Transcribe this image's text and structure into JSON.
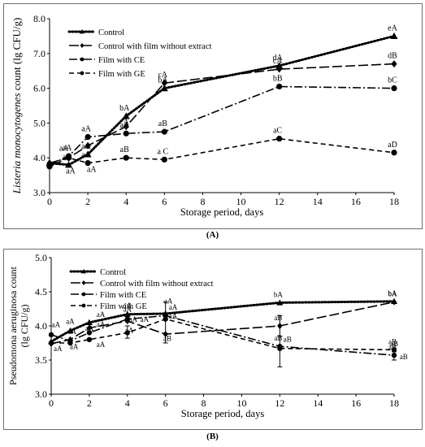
{
  "chart_data": [
    {
      "type": "line",
      "panel_label": "(A)",
      "title": "",
      "xlabel": "Storage period, days",
      "ylabel_italic": "Listeria monocytogenes",
      "ylabel_rest": " count (lg CFU/g)",
      "xlim": [
        0,
        18
      ],
      "ylim": [
        3.0,
        8.0
      ],
      "xticks": [
        "0",
        "2",
        "4",
        "6",
        "8",
        "10",
        "12",
        "14",
        "16",
        "18"
      ],
      "yticks": [
        "3.0",
        "4.0",
        "5.0",
        "6.0",
        "7.0",
        "8.0"
      ],
      "grid": false,
      "legend_position": "top-left",
      "series": [
        {
          "name": "Control",
          "style": "dotted",
          "marker": "triangle",
          "x": [
            0,
            1,
            2,
            4,
            6,
            12,
            18
          ],
          "y": [
            3.85,
            3.8,
            4.1,
            5.2,
            6.0,
            6.65,
            7.5
          ],
          "labels": [
            "",
            "aA",
            "aA",
            "bA",
            "bA",
            "dA",
            "eA"
          ]
        },
        {
          "name": "Control with film without extract",
          "style": "longdash",
          "marker": "diamond",
          "x": [
            0,
            1,
            2,
            4,
            6,
            12,
            18
          ],
          "y": [
            3.85,
            4.0,
            4.35,
            4.9,
            6.15,
            6.55,
            6.7
          ],
          "labels": [
            "",
            "",
            "",
            "",
            "cA",
            "cA",
            "dB"
          ]
        },
        {
          "name": "Film with CE",
          "style": "dashdot",
          "marker": "circle",
          "x": [
            0,
            1,
            2,
            4,
            6,
            12,
            18
          ],
          "y": [
            3.8,
            4.05,
            4.6,
            4.7,
            4.75,
            6.05,
            6.0
          ],
          "labels": [
            "",
            "aA",
            "aA",
            "aA",
            "aB",
            "bB",
            "bC"
          ]
        },
        {
          "name": "Film with GE",
          "style": "dashed",
          "marker": "circle",
          "x": [
            0,
            1,
            2,
            4,
            6,
            12,
            18
          ],
          "y": [
            3.75,
            4.0,
            3.85,
            4.0,
            3.95,
            4.55,
            4.15
          ],
          "labels": [
            "",
            "",
            "aA",
            "aB",
            "a C",
            "aC",
            "aD"
          ]
        }
      ],
      "extra_labels": [
        {
          "text": "aA",
          "x": 0.75,
          "y": 4.2
        },
        {
          "text": "aA",
          "x": 1.1,
          "y": 3.55
        },
        {
          "text": "aA",
          "x": 2.2,
          "y": 3.6
        },
        {
          "text": "A",
          "x": 4.0,
          "y": 4.95
        }
      ]
    },
    {
      "type": "line",
      "panel_label": "(B)",
      "title": "",
      "xlabel": "Storage period, days",
      "ylabel_line1": "Pseudomona aeruginosa count",
      "ylabel_line2": "(lg CFU/g)",
      "xlim": [
        0,
        18
      ],
      "ylim": [
        3.0,
        5.0
      ],
      "xticks": [
        "0",
        "2",
        "4",
        "6",
        "8",
        "10",
        "12",
        "14",
        "16",
        "18"
      ],
      "yticks": [
        "3.0",
        "3.5",
        "4.0",
        "4.5",
        "5.0"
      ],
      "grid": false,
      "legend_position": "top-left",
      "series": [
        {
          "name": "Control",
          "style": "dotted",
          "marker": "triangle",
          "x": [
            0,
            1,
            2,
            4,
            6,
            12,
            18
          ],
          "y": [
            3.77,
            3.93,
            4.05,
            4.17,
            4.18,
            4.34,
            4.36
          ],
          "labels": [
            "",
            "",
            "",
            "",
            "",
            "bA",
            "bA"
          ]
        },
        {
          "name": "Control with film without extract",
          "style": "longdash",
          "marker": "diamond",
          "x": [
            0,
            1,
            2,
            4,
            6,
            12,
            18
          ],
          "y": [
            3.74,
            3.8,
            3.97,
            4.07,
            3.88,
            4.0,
            4.35
          ],
          "labels": [
            "",
            "",
            "",
            "",
            "",
            "aB",
            "bA"
          ]
        },
        {
          "name": "Film with CE",
          "style": "dashdot",
          "marker": "circle",
          "x": [
            0,
            1,
            2,
            4,
            6,
            12,
            18
          ],
          "y": [
            3.87,
            3.78,
            3.9,
            4.1,
            4.15,
            3.7,
            3.57
          ],
          "labels": [
            "",
            "",
            "",
            "",
            "",
            "aB",
            "aB"
          ]
        },
        {
          "name": "Film with GE",
          "style": "dashed",
          "marker": "circle",
          "x": [
            0,
            1,
            2,
            4,
            6,
            12,
            18
          ],
          "y": [
            3.75,
            3.75,
            3.8,
            3.9,
            4.1,
            3.67,
            3.65
          ],
          "labels": [
            "",
            "",
            "",
            "",
            "",
            "",
            "aB"
          ]
        }
      ],
      "error_bars": [
        {
          "x": 6,
          "low": 3.75,
          "high": 4.35
        },
        {
          "x": 12,
          "low": 3.85,
          "high": 4.15
        },
        {
          "x": 12,
          "low": 3.4,
          "high": 3.85
        },
        {
          "x": 4,
          "low": 3.82,
          "high": 4.0
        },
        {
          "x": 18,
          "low": 3.5,
          "high": 3.62
        }
      ],
      "extra_labels": [
        {
          "text": "aA",
          "x": 0.25,
          "y": 3.98
        },
        {
          "text": "aA",
          "x": 0.35,
          "y": 3.63
        },
        {
          "text": "aA",
          "x": 1.0,
          "y": 4.03
        },
        {
          "text": "aA",
          "x": 1.1,
          "y": 3.88
        },
        {
          "text": "aA",
          "x": 1.2,
          "y": 3.66
        },
        {
          "text": "aA",
          "x": 2.0,
          "y": 3.93
        },
        {
          "text": "aA",
          "x": 2.6,
          "y": 4.13
        },
        {
          "text": "aA",
          "x": 2.6,
          "y": 3.99
        },
        {
          "text": "aA",
          "x": 2.6,
          "y": 3.69
        },
        {
          "text": "aA",
          "x": 4.0,
          "y": 4.26
        },
        {
          "text": "aA",
          "x": 4.0,
          "y": 4.21
        },
        {
          "text": "aA",
          "x": 4.3,
          "y": 4.06
        },
        {
          "text": "aA",
          "x": 4.9,
          "y": 4.06
        },
        {
          "text": "aA",
          "x": 4.1,
          "y": 3.9
        },
        {
          "text": "aA",
          "x": 6.15,
          "y": 4.33
        },
        {
          "text": "aA",
          "x": 6.4,
          "y": 4.24
        },
        {
          "text": "aA",
          "x": 6.4,
          "y": 4.11
        },
        {
          "text": "aB",
          "x": 6.1,
          "y": 3.78
        },
        {
          "text": "aB",
          "x": 12.4,
          "y": 3.77
        },
        {
          "text": "aB",
          "x": 18.0,
          "y": 3.7
        },
        {
          "text": "aB",
          "x": 18.5,
          "y": 3.51
        }
      ]
    }
  ]
}
